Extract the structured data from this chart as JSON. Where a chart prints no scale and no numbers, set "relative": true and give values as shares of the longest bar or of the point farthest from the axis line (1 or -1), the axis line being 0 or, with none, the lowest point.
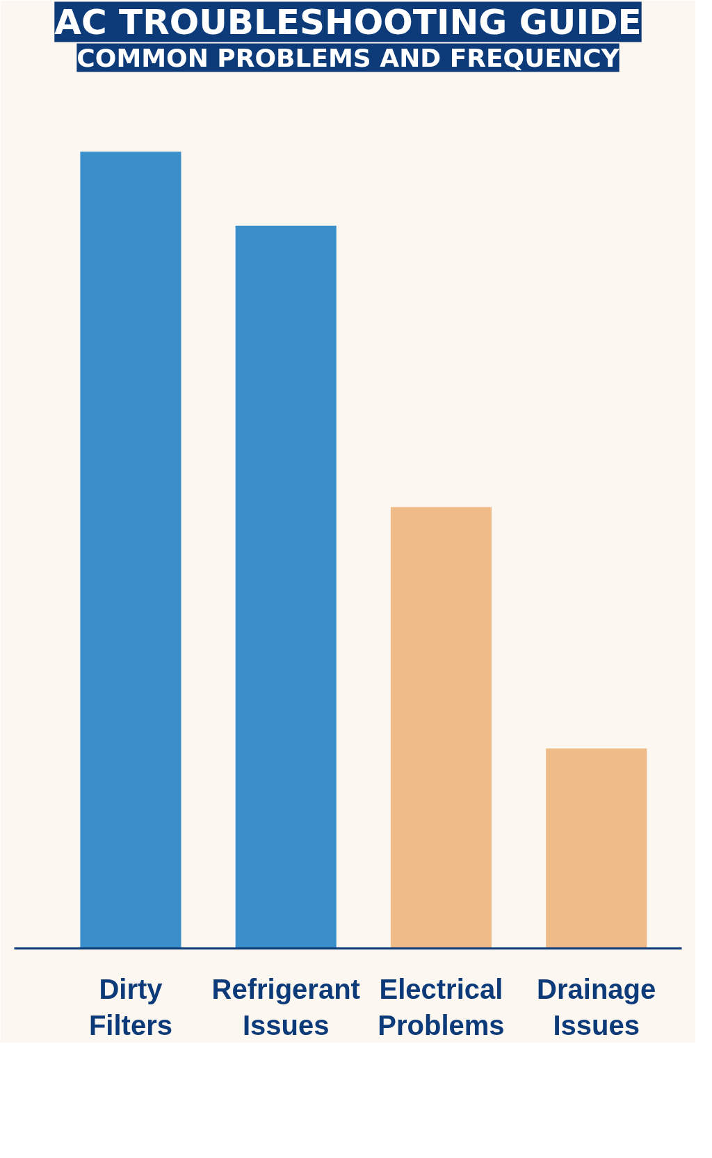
{
  "chart_data": {
    "type": "bar",
    "title": "AC TROUBLESHOOTING GUIDE",
    "subtitle": "COMMON PROBLEMS AND FREQUENCY",
    "relative": true,
    "categories": [
      "Dirty Filters",
      "Refrigerant Issues",
      "Electrical Problems",
      "Drainage Issues"
    ],
    "values": [
      1,
      0.907,
      0.554,
      0.251
    ],
    "colors": [
      "#3a8fcb",
      "#3a8fcb",
      "#efbb88",
      "#efbb88"
    ]
  }
}
